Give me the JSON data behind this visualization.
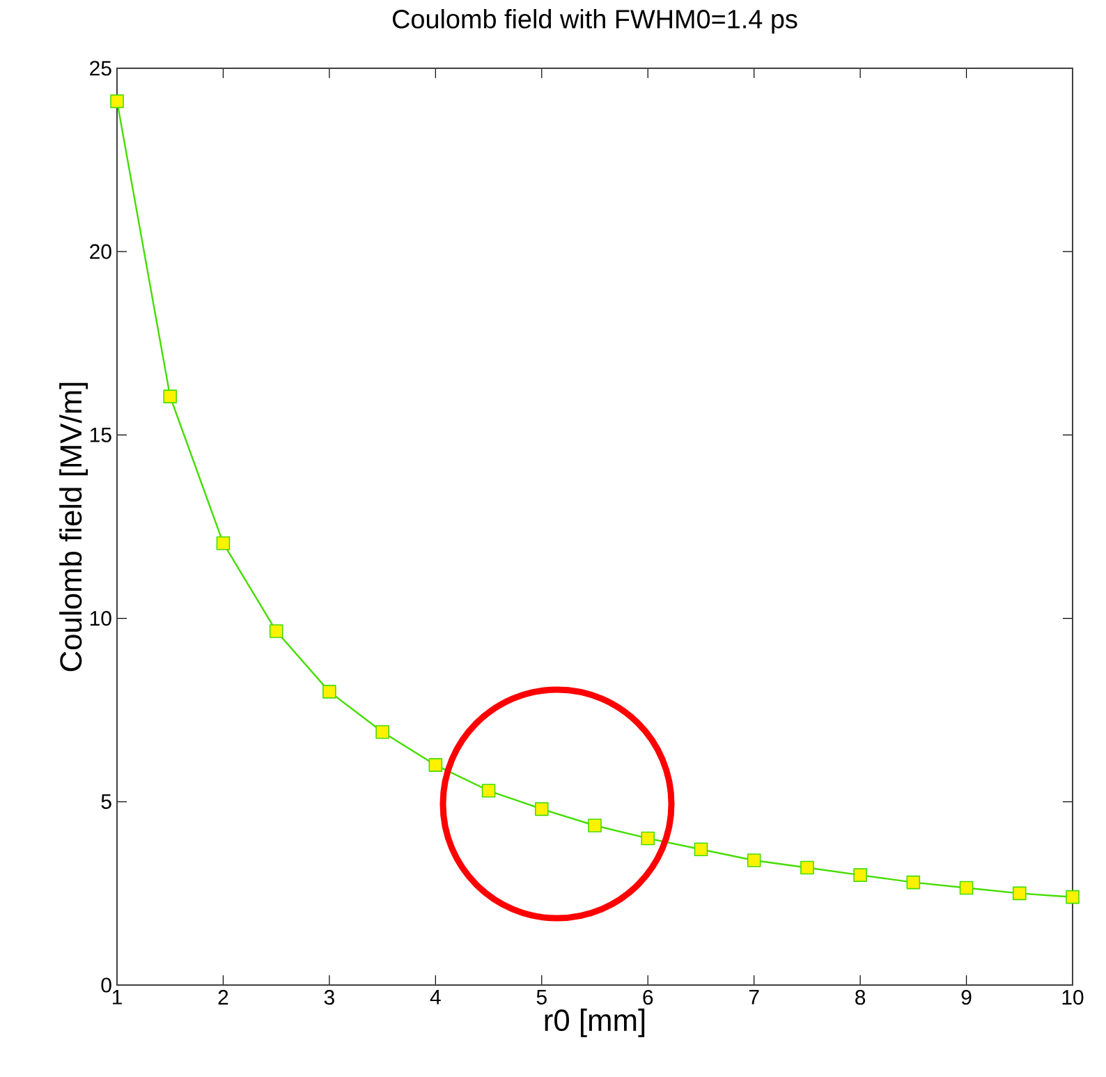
{
  "chart_data": {
    "type": "line",
    "title": "Coulomb field with FWHM0=1.4 ps",
    "xlabel": "r0 [mm]",
    "ylabel": "Coulomb field [MV/m]",
    "x": [
      1,
      1.5,
      2,
      2.5,
      3,
      3.5,
      4,
      4.5,
      5,
      5.5,
      6,
      6.5,
      7,
      7.5,
      8,
      8.5,
      9,
      9.5,
      10
    ],
    "series": [
      {
        "color": "#44dd00",
        "values": [
          24.1,
          16.05,
          12.05,
          9.65,
          8.0,
          6.9,
          6.0,
          5.3,
          4.8,
          4.35,
          4.0,
          3.7,
          3.4,
          3.2,
          3.0,
          2.8,
          2.65,
          2.5,
          2.4
        ]
      }
    ],
    "xlim": [
      1,
      10
    ],
    "ylim": [
      0,
      25
    ],
    "xticks": [
      1,
      2,
      3,
      4,
      5,
      6,
      7,
      8,
      9,
      10
    ],
    "yticks": [
      0,
      5,
      10,
      15,
      20,
      25
    ],
    "marker": "square",
    "line_style": "solid"
  }
}
